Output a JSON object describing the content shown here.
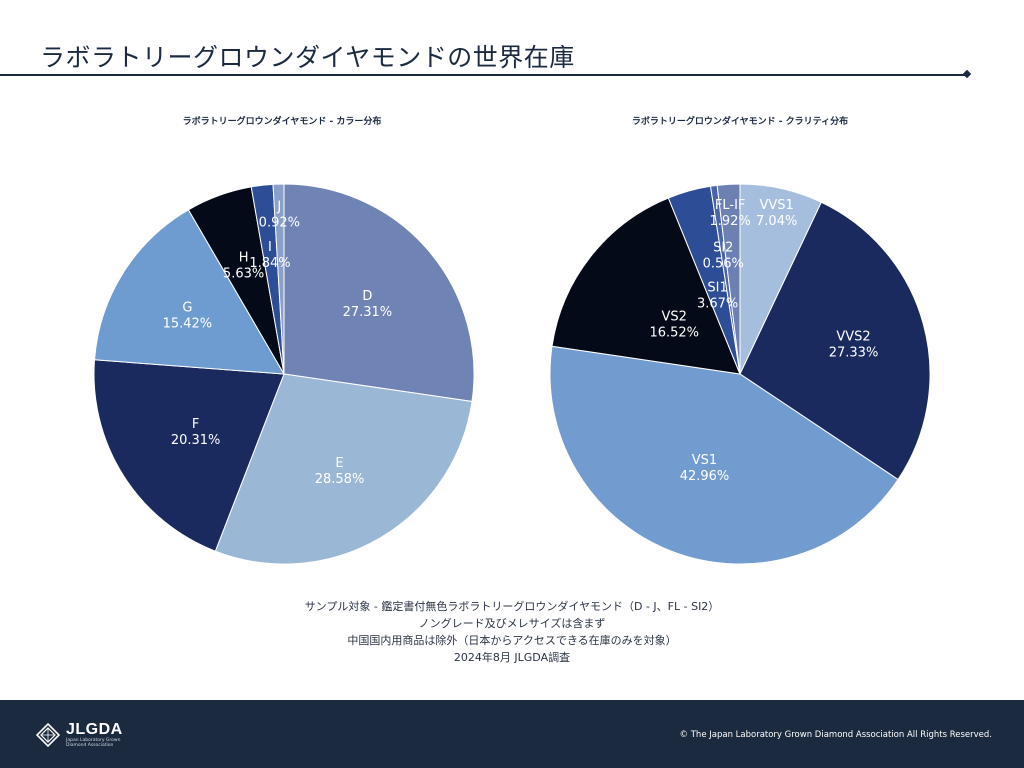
{
  "page": {
    "title": "ラボラトリーグロウンダイヤモンドの世界在庫"
  },
  "notes": [
    "サンプル対象 - 鑑定書付無色ラボラトリーグロウンダイヤモンド（D - J、FL - SI2）",
    "ノングレード及びメレサイズは含まず",
    "中国国内用商品は除外（日本からアクセスできる在庫のみを対象）",
    "2024年8月 JLGDA調査"
  ],
  "footer": {
    "logo_text": "JLGDA",
    "logo_subtext": "Japan Laboratory Grown Diamond Association",
    "copyright": "© The Japan Laboratory Grown Diamond Association All Rights Reserved."
  },
  "chart_data": [
    {
      "type": "pie",
      "title": "ラボラトリーグロウンダイヤモンド - カラー分布",
      "start_angle_deg": 0,
      "direction": "clockwise",
      "slices": [
        {
          "label": "D",
          "value": 27.31,
          "value_label": "27.31%",
          "color": "#6f84b4",
          "text_color": "#ffffff"
        },
        {
          "label": "E",
          "value": 28.58,
          "value_label": "28.58%",
          "color": "#9bb7d6",
          "text_color": "#ffffff"
        },
        {
          "label": "F",
          "value": 20.31,
          "value_label": "20.31%",
          "color": "#1b2a5e",
          "text_color": "#ffffff"
        },
        {
          "label": "G",
          "value": 15.42,
          "value_label": "15.42%",
          "color": "#6f9cd0",
          "text_color": "#ffffff"
        },
        {
          "label": "H",
          "value": 5.63,
          "value_label": "5.63%",
          "color": "#050a18",
          "text_color": "#ffffff"
        },
        {
          "label": "I",
          "value": 1.84,
          "value_label": "1.84%",
          "color": "#2d4e96",
          "text_color": "#ffffff"
        },
        {
          "label": "J",
          "value": 0.92,
          "value_label": "0.92%",
          "color": "#8aa0c8",
          "text_color": "#ffffff"
        }
      ]
    },
    {
      "type": "pie",
      "title": "ラボラトリーグロウンダイヤモンド - クラリティ分布",
      "start_angle_deg": 0,
      "direction": "clockwise",
      "slices": [
        {
          "label": "VVS1",
          "value": 7.04,
          "value_label": "7.04%",
          "color": "#a6bede",
          "text_color": "#ffffff"
        },
        {
          "label": "VVS2",
          "value": 27.33,
          "value_label": "27.33%",
          "color": "#1b2a5e",
          "text_color": "#ffffff"
        },
        {
          "label": "VS1",
          "value": 42.96,
          "value_label": "42.96%",
          "color": "#729cd0",
          "text_color": "#ffffff"
        },
        {
          "label": "VS2",
          "value": 16.52,
          "value_label": "16.52%",
          "color": "#050a18",
          "text_color": "#ffffff"
        },
        {
          "label": "SI1",
          "value": 3.67,
          "value_label": "3.67%",
          "color": "#2d4e96",
          "text_color": "#ffffff"
        },
        {
          "label": "SI2",
          "value": 0.56,
          "value_label": "0.56%",
          "color": "#4a64a8",
          "text_color": "#ffffff"
        },
        {
          "label": "FL-IF",
          "value": 1.92,
          "value_label": "1.92%",
          "color": "#6c80b2",
          "text_color": "#ffffff"
        }
      ]
    }
  ]
}
